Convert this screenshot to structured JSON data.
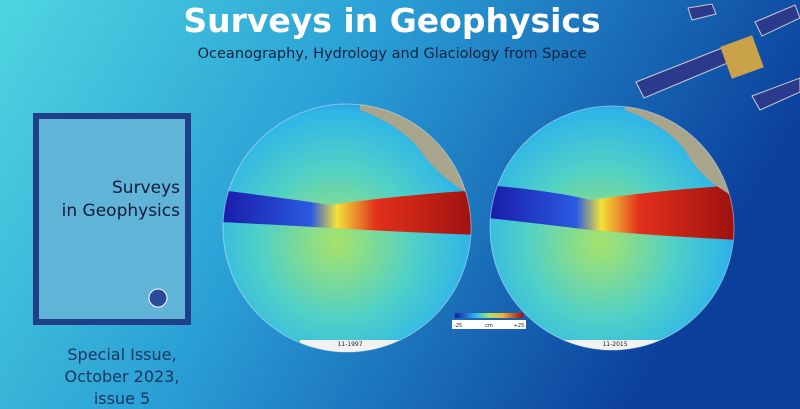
{
  "header": {
    "title": "Surveys in Geophysics",
    "subtitle": "Oceanography, Hydrology and Glaciology from Space"
  },
  "cover": {
    "title_lines": [
      "Surveys",
      "in Geophysics"
    ]
  },
  "caption": {
    "lines": [
      "Special Issue,",
      "October 2023,",
      "issue 5"
    ]
  },
  "maps": [
    {
      "label": "11-1997"
    },
    {
      "label": "11-2015"
    }
  ],
  "colorbar": {
    "labels": [
      "-25",
      "cm",
      "+25"
    ]
  }
}
